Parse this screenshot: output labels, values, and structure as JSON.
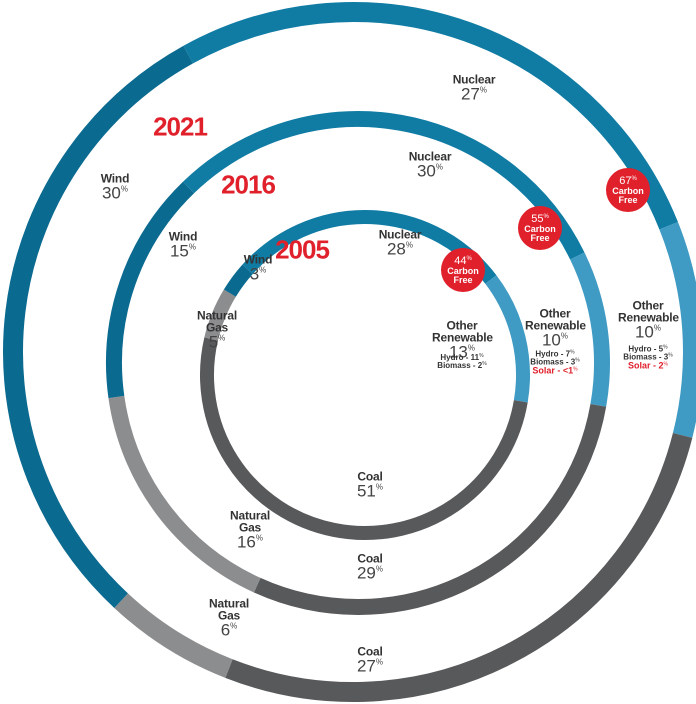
{
  "chart_data": {
    "type": "donut",
    "unit": "%",
    "detail_separator": "-",
    "carbon_free_label": "Carbon Free",
    "rings": [
      {
        "year": "2005",
        "carbon_free": 44,
        "segments": [
          {
            "name": "Nuclear",
            "value": 28,
            "color": "#107ca4"
          },
          {
            "name": "Other Renewable",
            "value": 13,
            "color": "#3f9bc4"
          },
          {
            "name": "Coal",
            "value": 51,
            "color": "#58595b"
          },
          {
            "name": "Natural Gas",
            "value": 5,
            "color": "#8c8d8f"
          },
          {
            "name": "Wind",
            "value": 3,
            "color": "#0b6a90"
          }
        ],
        "details": [
          {
            "name": "Hydro",
            "value": 11
          },
          {
            "name": "Biomass",
            "value": 2
          }
        ]
      },
      {
        "year": "2016",
        "carbon_free": 55,
        "segments": [
          {
            "name": "Nuclear",
            "value": 30,
            "color": "#107ca4"
          },
          {
            "name": "Other Renewable",
            "value": 10,
            "color": "#3f9bc4"
          },
          {
            "name": "Coal",
            "value": 29,
            "color": "#58595b"
          },
          {
            "name": "Natural Gas",
            "value": 16,
            "color": "#8c8d8f"
          },
          {
            "name": "Wind",
            "value": 15,
            "color": "#0b6a90"
          }
        ],
        "details": [
          {
            "name": "Hydro",
            "value": 7
          },
          {
            "name": "Biomass",
            "value": 3
          },
          {
            "name": "Solar",
            "value": 1,
            "value_label": "<1",
            "highlight": true
          }
        ]
      },
      {
        "year": "2021",
        "carbon_free": 67,
        "segments": [
          {
            "name": "Nuclear",
            "value": 27,
            "color": "#107ca4"
          },
          {
            "name": "Other Renewable",
            "value": 10,
            "color": "#3f9bc4"
          },
          {
            "name": "Coal",
            "value": 27,
            "color": "#58595b"
          },
          {
            "name": "Natural Gas",
            "value": 6,
            "color": "#8c8d8f"
          },
          {
            "name": "Wind",
            "value": 30,
            "color": "#0b6a90"
          }
        ],
        "details": [
          {
            "name": "Hydro",
            "value": 5
          },
          {
            "name": "Biomass",
            "value": 3
          },
          {
            "name": "Solar",
            "value": 2,
            "highlight": true
          }
        ]
      }
    ]
  }
}
